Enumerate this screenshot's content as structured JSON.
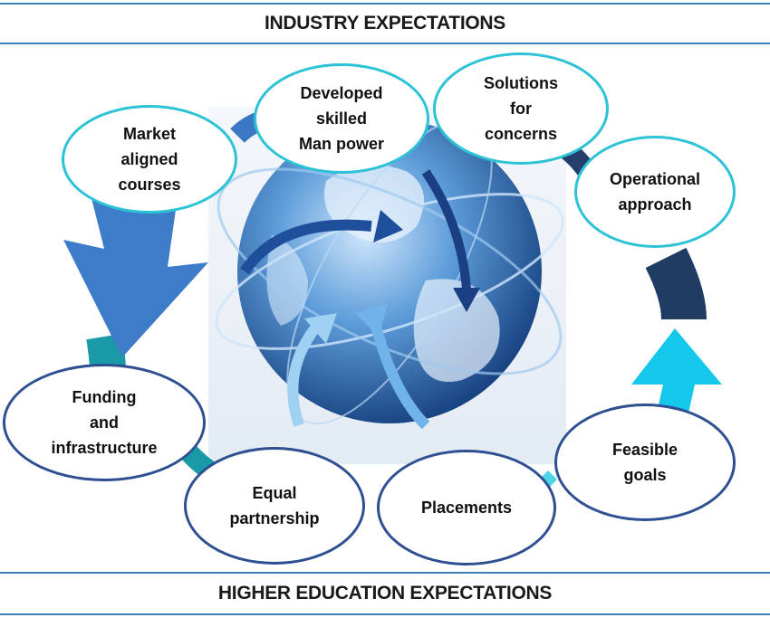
{
  "header": {
    "title": "INDUSTRY EXPECTATIONS"
  },
  "footer": {
    "title": "HIGHER EDUCATION EXPECTATIONS"
  },
  "nodes": {
    "market": "Market\naligned\ncourses",
    "developed": "Developed\nskilled\nMan power",
    "solutions": "Solutions\nfor\nconcerns",
    "operational": "Operational\napproach",
    "funding": "Funding\nand\ninfrastructure",
    "equal": "Equal\npartnership",
    "placements": "Placements",
    "feasible": "Feasible\ngoals"
  },
  "colors": {
    "cyan_border": "#2cc3d6",
    "navy_border": "#2f4f93",
    "banner_line": "#3d7fb8"
  }
}
